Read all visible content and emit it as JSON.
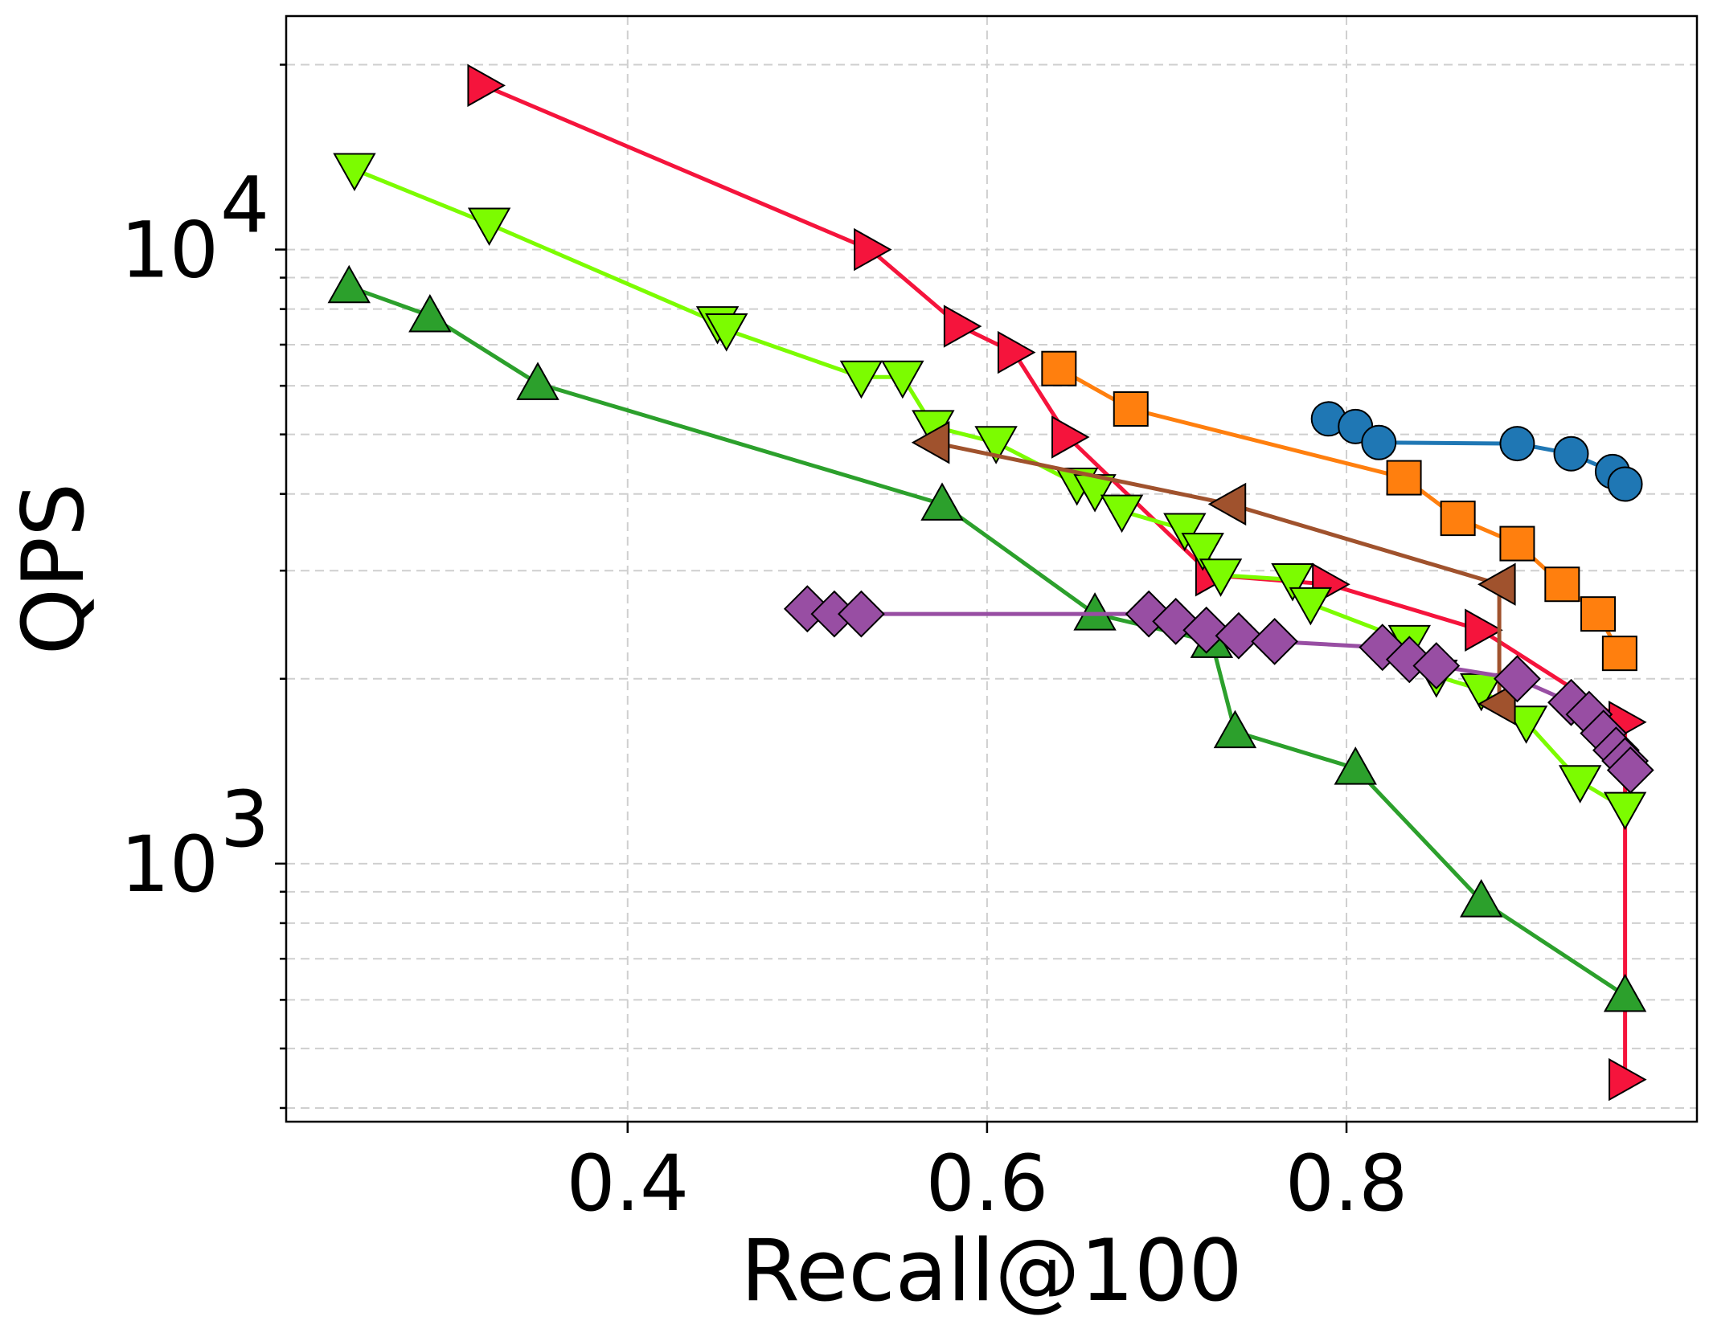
{
  "chart_data": {
    "type": "line",
    "title": "",
    "xlabel": "Recall@100",
    "ylabel": "QPS",
    "xscale": "linear",
    "yscale": "log",
    "xlim": [
      0.21,
      0.995
    ],
    "ylim": [
      380,
      24000
    ],
    "x_ticks": [
      {
        "value": 0.4,
        "label": "0.4"
      },
      {
        "value": 0.6,
        "label": "0.6"
      },
      {
        "value": 0.8,
        "label": "0.8"
      }
    ],
    "y_ticks": [
      {
        "value": 1000,
        "base": "10",
        "exp": "3"
      },
      {
        "value": 10000,
        "base": "10",
        "exp": "4"
      }
    ],
    "grid": true,
    "legend": "none",
    "series": [
      {
        "name": "series-blue-circle",
        "color": "#1f77b4",
        "marker": "circle",
        "points": [
          [
            0.79,
            5300
          ],
          [
            0.805,
            5150
          ],
          [
            0.818,
            4850
          ],
          [
            0.895,
            4830
          ],
          [
            0.925,
            4650
          ],
          [
            0.948,
            4350
          ],
          [
            0.955,
            4150
          ]
        ]
      },
      {
        "name": "series-orange-square",
        "color": "#ff7f0e",
        "marker": "square",
        "points": [
          [
            0.64,
            6400
          ],
          [
            0.68,
            5500
          ],
          [
            0.832,
            4250
          ],
          [
            0.862,
            3650
          ],
          [
            0.895,
            3320
          ],
          [
            0.92,
            2850
          ],
          [
            0.94,
            2550
          ],
          [
            0.952,
            2200
          ]
        ]
      },
      {
        "name": "series-red-triangle-right",
        "color": "#f5143c",
        "marker": "triangle-right",
        "points": [
          [
            0.32,
            18500
          ],
          [
            0.535,
            10000
          ],
          [
            0.585,
            7500
          ],
          [
            0.615,
            6800
          ],
          [
            0.645,
            4950
          ],
          [
            0.725,
            2950
          ],
          [
            0.79,
            2850
          ],
          [
            0.875,
            2400
          ],
          [
            0.955,
            1700
          ],
          [
            0.955,
            445
          ]
        ]
      },
      {
        "name": "series-lime-triangle-down",
        "color": "#7cfc00",
        "marker": "triangle-down",
        "points": [
          [
            0.248,
            13500
          ],
          [
            0.323,
            11000
          ],
          [
            0.45,
            7600
          ],
          [
            0.455,
            7400
          ],
          [
            0.53,
            6200
          ],
          [
            0.553,
            6200
          ],
          [
            0.57,
            5150
          ],
          [
            0.605,
            4850
          ],
          [
            0.65,
            4150
          ],
          [
            0.66,
            4050
          ],
          [
            0.675,
            3750
          ],
          [
            0.71,
            3500
          ],
          [
            0.72,
            3250
          ],
          [
            0.73,
            2950
          ],
          [
            0.77,
            2900
          ],
          [
            0.78,
            2650
          ],
          [
            0.835,
            2300
          ],
          [
            0.85,
            2020
          ],
          [
            0.875,
            1920
          ],
          [
            0.9,
            1700
          ],
          [
            0.93,
            1360
          ],
          [
            0.955,
            1230
          ]
        ]
      },
      {
        "name": "series-brown-triangle-left",
        "color": "#a0522d",
        "marker": "triangle-left",
        "points": [
          [
            0.57,
            4850
          ],
          [
            0.735,
            3850
          ],
          [
            0.885,
            2850
          ],
          [
            0.885,
            1820
          ]
        ]
      },
      {
        "name": "series-green-triangle-up",
        "color": "#2ca02c",
        "marker": "triangle-up",
        "points": [
          [
            0.245,
            8700
          ],
          [
            0.29,
            7800
          ],
          [
            0.35,
            6050
          ],
          [
            0.575,
            3850
          ],
          [
            0.66,
            2550
          ],
          [
            0.725,
            2300
          ],
          [
            0.738,
            1640
          ],
          [
            0.805,
            1430
          ],
          [
            0.875,
            870
          ],
          [
            0.955,
            610
          ]
        ]
      },
      {
        "name": "series-purple-diamond",
        "color": "#984ea3",
        "marker": "diamond",
        "points": [
          [
            0.5,
            2600
          ],
          [
            0.515,
            2550
          ],
          [
            0.53,
            2550
          ],
          [
            0.69,
            2550
          ],
          [
            0.705,
            2480
          ],
          [
            0.722,
            2400
          ],
          [
            0.74,
            2350
          ],
          [
            0.76,
            2300
          ],
          [
            0.82,
            2250
          ],
          [
            0.835,
            2150
          ],
          [
            0.85,
            2100
          ],
          [
            0.895,
            2000
          ],
          [
            0.925,
            1830
          ],
          [
            0.935,
            1750
          ],
          [
            0.943,
            1630
          ],
          [
            0.95,
            1530
          ],
          [
            0.955,
            1470
          ],
          [
            0.958,
            1420
          ]
        ]
      }
    ]
  }
}
